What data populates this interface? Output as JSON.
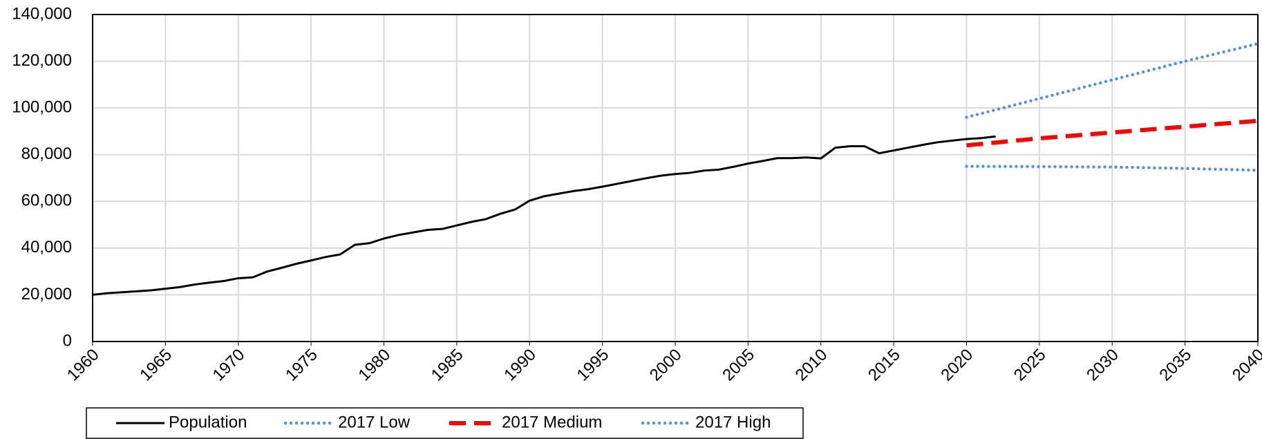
{
  "chart_data": {
    "type": "line",
    "xlim": [
      1960,
      2040
    ],
    "xticks": [
      1960,
      1965,
      1970,
      1975,
      1980,
      1985,
      1990,
      1995,
      2000,
      2005,
      2010,
      2015,
      2020,
      2025,
      2030,
      2035,
      2040
    ],
    "ylim": [
      0,
      140000
    ],
    "yticks": [
      0,
      {
        "value": 20000,
        "label": "20,000"
      },
      {
        "value": 40000,
        "label": "40,000"
      },
      {
        "value": 60000,
        "label": "60,000"
      },
      {
        "value": 80000,
        "label": "80,000"
      },
      {
        "value": 100000,
        "label": "100,000"
      },
      {
        "value": 120000,
        "label": "120,000"
      },
      {
        "value": 140000,
        "label": "140,000"
      }
    ],
    "grid": true,
    "legend": "bottom",
    "series": [
      {
        "name": "Population",
        "color": "#000000",
        "style": "solid",
        "x": [
          1960,
          1961,
          1962,
          1963,
          1964,
          1965,
          1966,
          1967,
          1968,
          1969,
          1970,
          1971,
          1972,
          1973,
          1974,
          1975,
          1976,
          1977,
          1978,
          1979,
          1980,
          1981,
          1982,
          1983,
          1984,
          1985,
          1986,
          1987,
          1988,
          1989,
          1990,
          1991,
          1992,
          1993,
          1994,
          1995,
          1996,
          1997,
          1998,
          1999,
          2000,
          2001,
          2002,
          2003,
          2004,
          2005,
          2006,
          2007,
          2008,
          2009,
          2010,
          2011,
          2012,
          2013,
          2014,
          2015,
          2016,
          2017,
          2018,
          2019,
          2020,
          2021,
          2022
        ],
        "values": [
          20000,
          20700,
          21100,
          21500,
          21900,
          22600,
          23300,
          24400,
          25200,
          25900,
          27100,
          27500,
          30000,
          31600,
          33300,
          34700,
          36200,
          37300,
          41400,
          42100,
          44100,
          45600,
          46700,
          47800,
          48200,
          49700,
          51200,
          52400,
          54700,
          56500,
          60300,
          62200,
          63300,
          64400,
          65200,
          66300,
          67500,
          68700,
          69900,
          71000,
          71700,
          72200,
          73200,
          73600,
          74800,
          76200,
          77300,
          78500,
          78500,
          78800,
          78400,
          83000,
          83600,
          83600,
          80600,
          81800,
          83000,
          84200,
          85300,
          86000,
          86700,
          87100,
          87800
        ]
      },
      {
        "name": "2017 Low",
        "color": "#5b8fd6",
        "style": "dotted",
        "x": [
          2020,
          2025,
          2030,
          2035,
          2040
        ],
        "values": [
          75000,
          74900,
          74700,
          74100,
          73300
        ]
      },
      {
        "name": "2017 Medium",
        "color": "#ff0000",
        "style": "dashed",
        "x": [
          2020,
          2025,
          2030,
          2035,
          2040
        ],
        "values": [
          84000,
          87000,
          89500,
          92000,
          94500
        ]
      },
      {
        "name": "2017 High",
        "color": "#5b8fd6",
        "style": "dotted",
        "x": [
          2020,
          2025,
          2030,
          2035,
          2040
        ],
        "values": [
          96000,
          104000,
          112000,
          120000,
          127500
        ]
      }
    ]
  }
}
